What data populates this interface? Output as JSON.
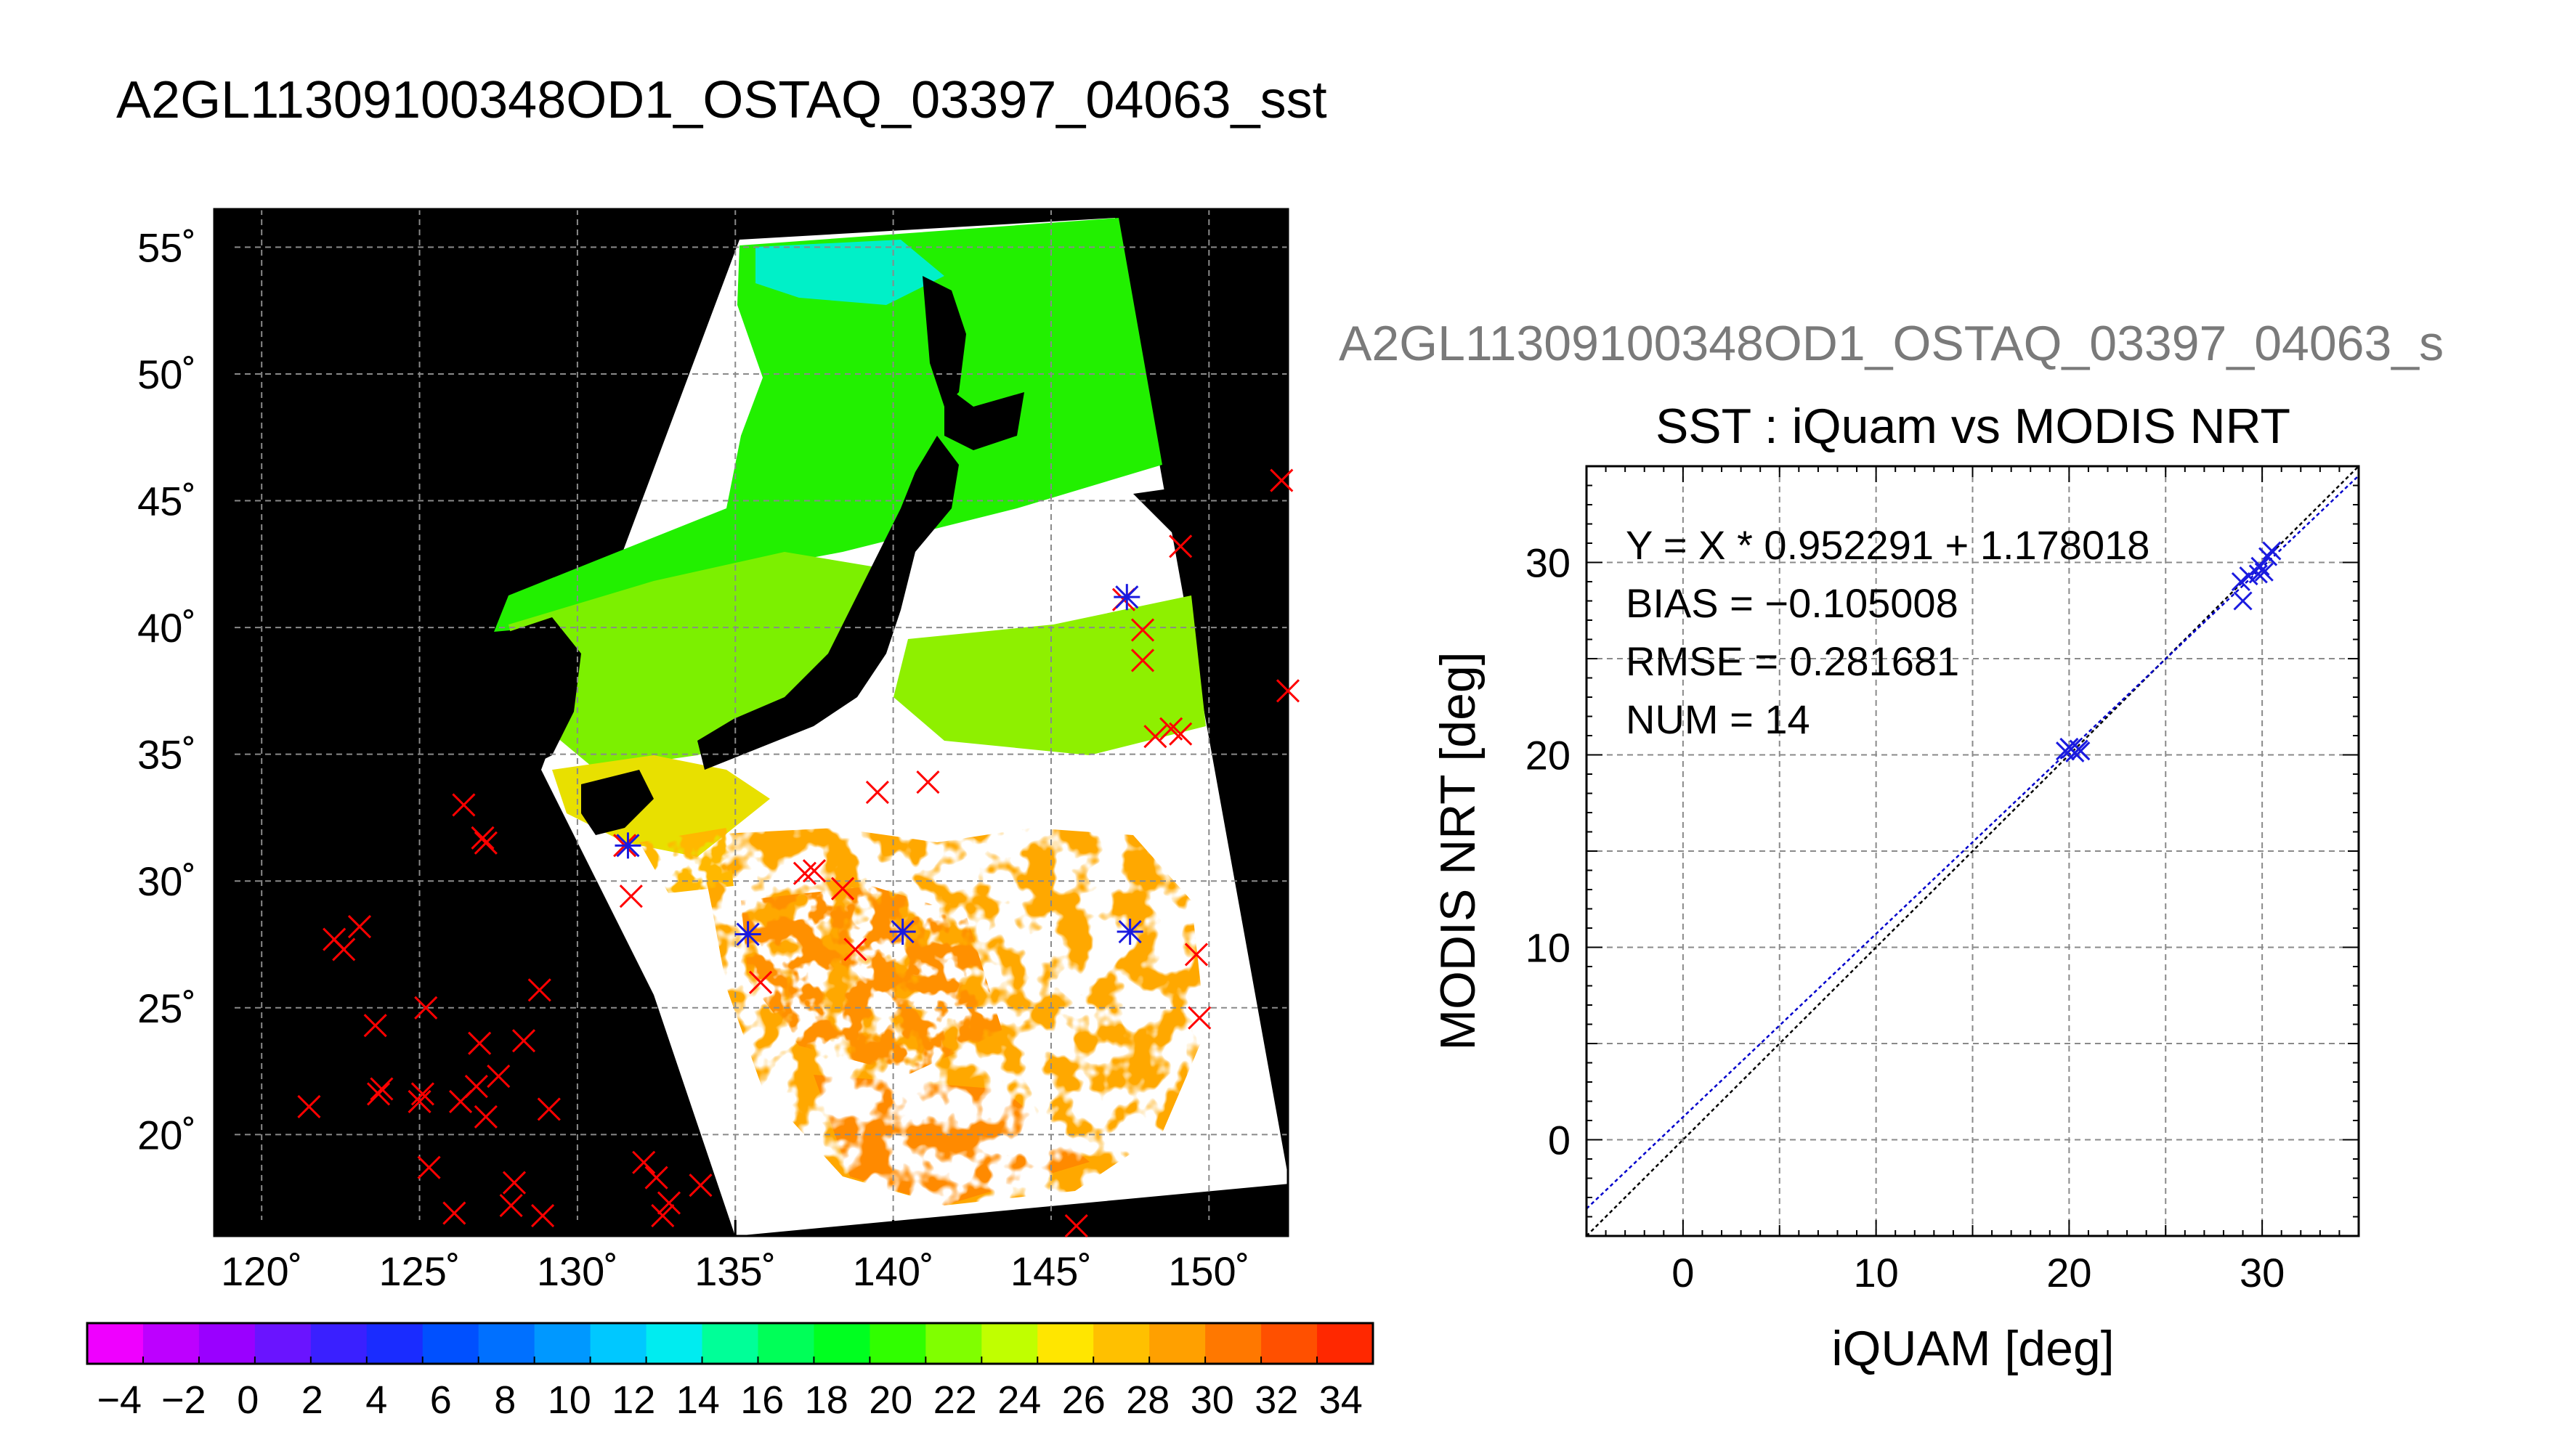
{
  "page": {
    "title": "A2GL11309100348OD1_OSTAQ_03397_04063_sst",
    "right_title": "A2GL11309100348OD1_OSTAQ_03397_04063_s"
  },
  "colors": {
    "land": "#000000",
    "cloud": "#ffffff",
    "grid": "#8a8a8a",
    "obs_marker": "#ff0000",
    "matched_marker": "#1a1adf",
    "regression_line": "#0000cc",
    "identity_line": "#000000"
  },
  "chart_data": [
    {
      "type": "scatter",
      "name": "sst-map",
      "x_axis": {
        "range": [
          118.5,
          152.5
        ],
        "ticks": [
          120,
          125,
          130,
          135,
          140,
          145,
          150
        ],
        "tick_labels": [
          "120˚",
          "125˚",
          "130˚",
          "135˚",
          "140˚",
          "145˚",
          "150˚"
        ]
      },
      "y_axis": {
        "range": [
          16,
          56.5
        ],
        "ticks": [
          20,
          25,
          30,
          35,
          40,
          45,
          50,
          55
        ],
        "tick_labels": [
          "20˚",
          "25˚",
          "30˚",
          "35˚",
          "40˚",
          "45˚",
          "50˚",
          "55˚"
        ]
      },
      "grid": true,
      "colorbar": {
        "range": [
          -5,
          35
        ],
        "tick_values": [
          -4,
          -2,
          0,
          2,
          4,
          6,
          8,
          10,
          12,
          14,
          16,
          18,
          20,
          22,
          24,
          26,
          28,
          30,
          32,
          34
        ],
        "tick_labels": [
          "−4",
          "−2",
          "0",
          "2",
          "4",
          "6",
          "8",
          "10",
          "12",
          "14",
          "16",
          "18",
          "20",
          "22",
          "24",
          "26",
          "28",
          "30",
          "32",
          "34"
        ],
        "colors": [
          "#ef00ff",
          "#bd00ff",
          "#9a00ff",
          "#6a14ff",
          "#3a20ff",
          "#1a2cff",
          "#0050ff",
          "#0070ff",
          "#0098ff",
          "#00c8ff",
          "#00ecf0",
          "#00ff98",
          "#00ff58",
          "#00ff20",
          "#30ff00",
          "#80ff00",
          "#c0ff00",
          "#ffe600",
          "#ffc000",
          "#ffa000",
          "#ff7800",
          "#ff5000",
          "#ff2800"
        ]
      },
      "obs_points": [
        [
          121.5,
          21.1
        ],
        [
          122.3,
          27.7
        ],
        [
          122.6,
          27.3
        ],
        [
          123.1,
          28.2
        ],
        [
          123.6,
          24.3
        ],
        [
          123.7,
          21.6
        ],
        [
          123.8,
          21.8
        ],
        [
          125.0,
          21.3
        ],
        [
          125.1,
          21.6
        ],
        [
          125.2,
          25.0
        ],
        [
          125.3,
          18.7
        ],
        [
          126.1,
          16.9
        ],
        [
          126.3,
          21.3
        ],
        [
          126.4,
          33.0
        ],
        [
          126.8,
          21.9
        ],
        [
          126.9,
          23.6
        ],
        [
          127.0,
          31.7
        ],
        [
          127.1,
          31.5
        ],
        [
          127.1,
          20.7
        ],
        [
          127.5,
          22.3
        ],
        [
          127.9,
          17.2
        ],
        [
          128.0,
          18.1
        ],
        [
          128.3,
          23.7
        ],
        [
          128.8,
          25.7
        ],
        [
          128.9,
          16.8
        ],
        [
          129.1,
          21.0
        ],
        [
          131.5,
          31.4
        ],
        [
          131.7,
          29.4
        ],
        [
          132.1,
          18.9
        ],
        [
          132.5,
          18.3
        ],
        [
          132.7,
          16.8
        ],
        [
          132.9,
          17.3
        ],
        [
          133.9,
          18.0
        ],
        [
          135.8,
          26.0
        ],
        [
          137.2,
          30.3
        ],
        [
          137.5,
          30.4
        ],
        [
          138.4,
          29.7
        ],
        [
          138.8,
          27.3
        ],
        [
          139.5,
          33.5
        ],
        [
          141.1,
          33.9
        ],
        [
          145.8,
          16.4
        ],
        [
          147.3,
          41.1
        ],
        [
          147.9,
          39.9
        ],
        [
          147.9,
          38.7
        ],
        [
          148.3,
          35.7
        ],
        [
          148.8,
          36.0
        ],
        [
          149.1,
          35.8
        ],
        [
          149.1,
          43.2
        ],
        [
          149.6,
          27.1
        ],
        [
          149.7,
          24.6
        ],
        [
          152.3,
          45.8
        ],
        [
          152.5,
          37.5
        ]
      ],
      "matched_points": [
        [
          131.6,
          31.4
        ],
        [
          135.4,
          27.9
        ],
        [
          140.3,
          28.0
        ],
        [
          147.4,
          41.2
        ],
        [
          147.5,
          28.0
        ]
      ]
    },
    {
      "type": "scatter",
      "name": "sst-comparison",
      "title": "SST : iQuam vs MODIS NRT",
      "xlabel": "iQUAM [deg]",
      "ylabel": "MODIS NRT [deg]",
      "xlim": [
        -5,
        35
      ],
      "ylim": [
        -5,
        35
      ],
      "x_ticks": [
        0,
        10,
        20,
        30
      ],
      "y_ticks": [
        0,
        10,
        20,
        30
      ],
      "grid": true,
      "stats": {
        "equation": "Y = X * 0.952291 + 1.178018",
        "bias": "BIAS = −0.105008",
        "rmse": "RMSE = 0.281681",
        "num": "NUM = 14"
      },
      "regression": {
        "slope": 0.952291,
        "intercept": 1.178018
      },
      "points": [
        [
          19.8,
          20.2
        ],
        [
          20.0,
          20.4
        ],
        [
          20.1,
          20.3
        ],
        [
          20.3,
          20.1
        ],
        [
          20.5,
          20.3
        ],
        [
          20.6,
          20.2
        ],
        [
          29.0,
          28.0
        ],
        [
          28.9,
          29.0
        ],
        [
          29.3,
          29.3
        ],
        [
          29.8,
          29.4
        ],
        [
          29.9,
          29.8
        ],
        [
          30.1,
          29.5
        ],
        [
          30.3,
          30.3
        ],
        [
          30.5,
          30.6
        ]
      ]
    }
  ]
}
